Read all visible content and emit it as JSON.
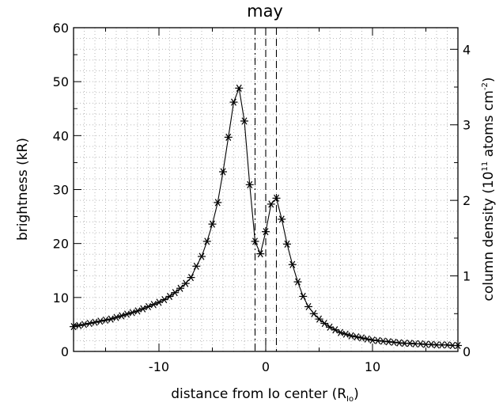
{
  "chart_data": {
    "type": "line",
    "title": "may",
    "xlabel": {
      "text": "distance from Io center (R",
      "subscript": "Io",
      "suffix": ")"
    },
    "ylabel_left": "brightness (kR)",
    "ylabel_right": {
      "text": "column density (10",
      "sup1": "11",
      "mid": " atoms cm",
      "sup2": "-2",
      "suffix": ")"
    },
    "xlim": [
      -18,
      18
    ],
    "ylim_left": [
      0,
      60
    ],
    "ylim_right": [
      0,
      4.286
    ],
    "x_ticks": [
      -10,
      0,
      10
    ],
    "x_tick_labels": [
      "-10",
      "0",
      "10"
    ],
    "y_ticks_left": [
      0,
      10,
      20,
      30,
      40,
      50,
      60
    ],
    "y_tick_labels_left": [
      "0",
      "10",
      "20",
      "30",
      "40",
      "50",
      "60"
    ],
    "y_ticks_right": [
      0,
      1,
      2,
      3,
      4
    ],
    "y_tick_labels_right": [
      "0",
      "1",
      "2",
      "3",
      "4"
    ],
    "grid": "dotted",
    "marker": "asterisk",
    "vertical_lines": [
      {
        "x": -1.0,
        "style": "dashdot"
      },
      {
        "x": 0.0,
        "style": "dashed"
      },
      {
        "x": 1.0,
        "style": "dashed"
      }
    ],
    "x": [
      -18.0,
      -17.5,
      -17.0,
      -16.5,
      -16.0,
      -15.5,
      -15.0,
      -14.5,
      -14.0,
      -13.5,
      -13.0,
      -12.5,
      -12.0,
      -11.5,
      -11.0,
      -10.5,
      -10.0,
      -9.5,
      -9.0,
      -8.5,
      -8.0,
      -7.5,
      -7.0,
      -6.5,
      -6.0,
      -5.5,
      -5.0,
      -4.5,
      -4.0,
      -3.5,
      -3.0,
      -2.5,
      -2.0,
      -1.5,
      -1.0,
      -0.5,
      0.0,
      0.5,
      1.0,
      1.5,
      2.0,
      2.5,
      3.0,
      3.5,
      4.0,
      4.5,
      5.0,
      5.5,
      6.0,
      6.5,
      7.0,
      7.5,
      8.0,
      8.5,
      9.0,
      9.5,
      10.0,
      10.5,
      11.0,
      11.5,
      12.0,
      12.5,
      13.0,
      13.5,
      14.0,
      14.5,
      15.0,
      15.5,
      16.0,
      16.5,
      17.0,
      17.5,
      18.0
    ],
    "series": [
      {
        "values": [
          4.6,
          4.8,
          5.0,
          5.2,
          5.4,
          5.6,
          5.8,
          6.0,
          6.3,
          6.6,
          6.9,
          7.2,
          7.5,
          7.9,
          8.3,
          8.7,
          9.1,
          9.6,
          10.2,
          10.9,
          11.7,
          12.6,
          13.7,
          15.8,
          17.6,
          20.4,
          23.6,
          27.6,
          33.3,
          39.7,
          46.2,
          48.8,
          42.7,
          30.9,
          20.4,
          18.1,
          22.2,
          27.3,
          28.4,
          24.5,
          19.9,
          16.1,
          12.9,
          10.2,
          8.3,
          7.0,
          6.0,
          5.2,
          4.5,
          4.0,
          3.5,
          3.2,
          2.9,
          2.7,
          2.5,
          2.3,
          2.1,
          2.0,
          1.9,
          1.8,
          1.7,
          1.6,
          1.5,
          1.5,
          1.4,
          1.4,
          1.3,
          1.3,
          1.2,
          1.2,
          1.2,
          1.1,
          1.1
        ]
      }
    ]
  }
}
